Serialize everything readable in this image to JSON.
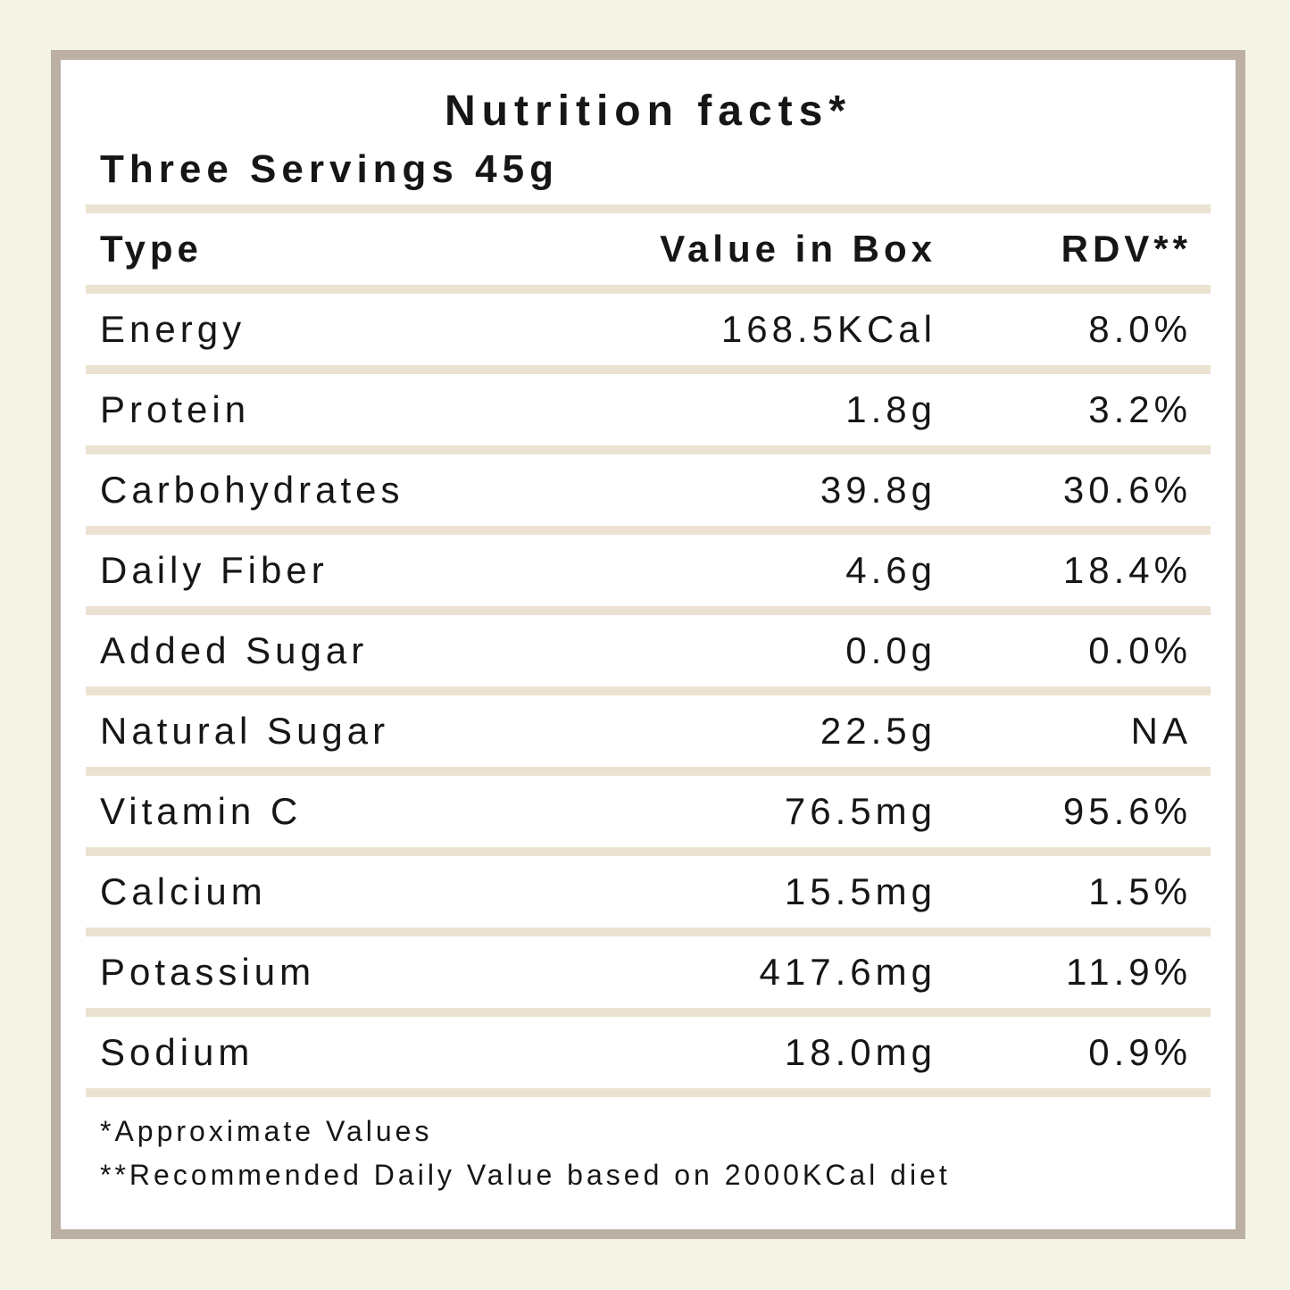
{
  "colors": {
    "page_background": "#f4f5e6",
    "card_border": "#bcb0a4",
    "card_background": "#ffffff",
    "separator": "#ece2d1",
    "text": "#161616"
  },
  "title": "Nutrition facts*",
  "serving_info": "Three Servings 45g",
  "table": {
    "headers": {
      "type": "Type",
      "value": "Value in Box",
      "rdv": "RDV**"
    },
    "rows": [
      {
        "type": "Energy",
        "value": "168.5KCal",
        "rdv": "8.0%"
      },
      {
        "type": "Protein",
        "value": "1.8g",
        "rdv": "3.2%"
      },
      {
        "type": "Carbohydrates",
        "value": "39.8g",
        "rdv": "30.6%"
      },
      {
        "type": "Daily Fiber",
        "value": "4.6g",
        "rdv": "18.4%"
      },
      {
        "type": "Added Sugar",
        "value": "0.0g",
        "rdv": "0.0%"
      },
      {
        "type": "Natural Sugar",
        "value": "22.5g",
        "rdv": "NA"
      },
      {
        "type": "Vitamin C",
        "value": "76.5mg",
        "rdv": "95.6%"
      },
      {
        "type": "Calcium",
        "value": "15.5mg",
        "rdv": "1.5%"
      },
      {
        "type": "Potassium",
        "value": "417.6mg",
        "rdv": "11.9%"
      },
      {
        "type": "Sodium",
        "value": "18.0mg",
        "rdv": "0.9%"
      }
    ]
  },
  "footnotes": {
    "approx": "*Approximate Values",
    "rdv": "**Recommended Daily Value based on 2000KCal diet"
  }
}
